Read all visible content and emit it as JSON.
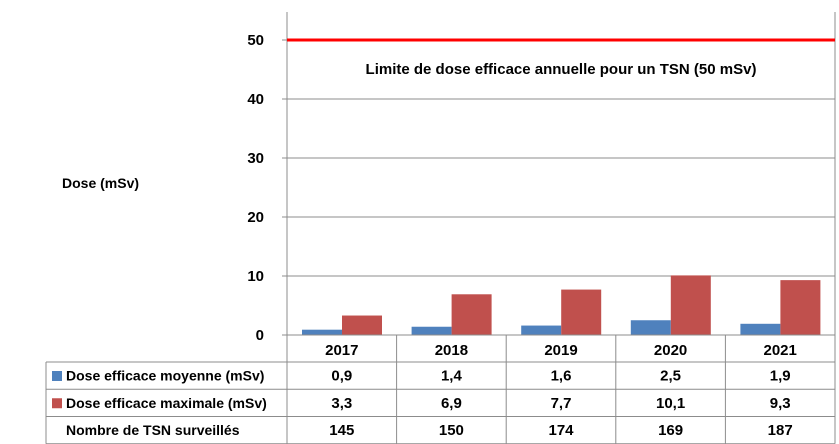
{
  "chart_data": {
    "type": "bar",
    "categories": [
      "2017",
      "2018",
      "2019",
      "2020",
      "2021"
    ],
    "series": [
      {
        "name": "Dose efficace moyenne (mSv)",
        "values": [
          0.9,
          1.4,
          1.6,
          2.5,
          1.9
        ],
        "labels": [
          "0,9",
          "1,4",
          "1,6",
          "2,5",
          "1,9"
        ],
        "color": "#4f81bd"
      },
      {
        "name": "Dose efficace maximale (mSv)",
        "values": [
          3.3,
          6.9,
          7.7,
          10.1,
          9.3
        ],
        "labels": [
          "3,3",
          "6,9",
          "7,7",
          "10,1",
          "9,3"
        ],
        "color": "#c0504d"
      }
    ],
    "table_rows": [
      {
        "label": "Nombre de TSN surveillés",
        "values": [
          "145",
          "150",
          "174",
          "169",
          "187"
        ]
      }
    ],
    "ylabel": "Dose (mSv)",
    "ylim": [
      0,
      55
    ],
    "yticks": [
      "0",
      "10",
      "20",
      "30",
      "40",
      "50"
    ],
    "grid": true,
    "reference_line": {
      "value": 50,
      "label": "Limite de dose efficace annuelle pour un TSN (50 mSv)",
      "color": "#ff0000"
    }
  }
}
